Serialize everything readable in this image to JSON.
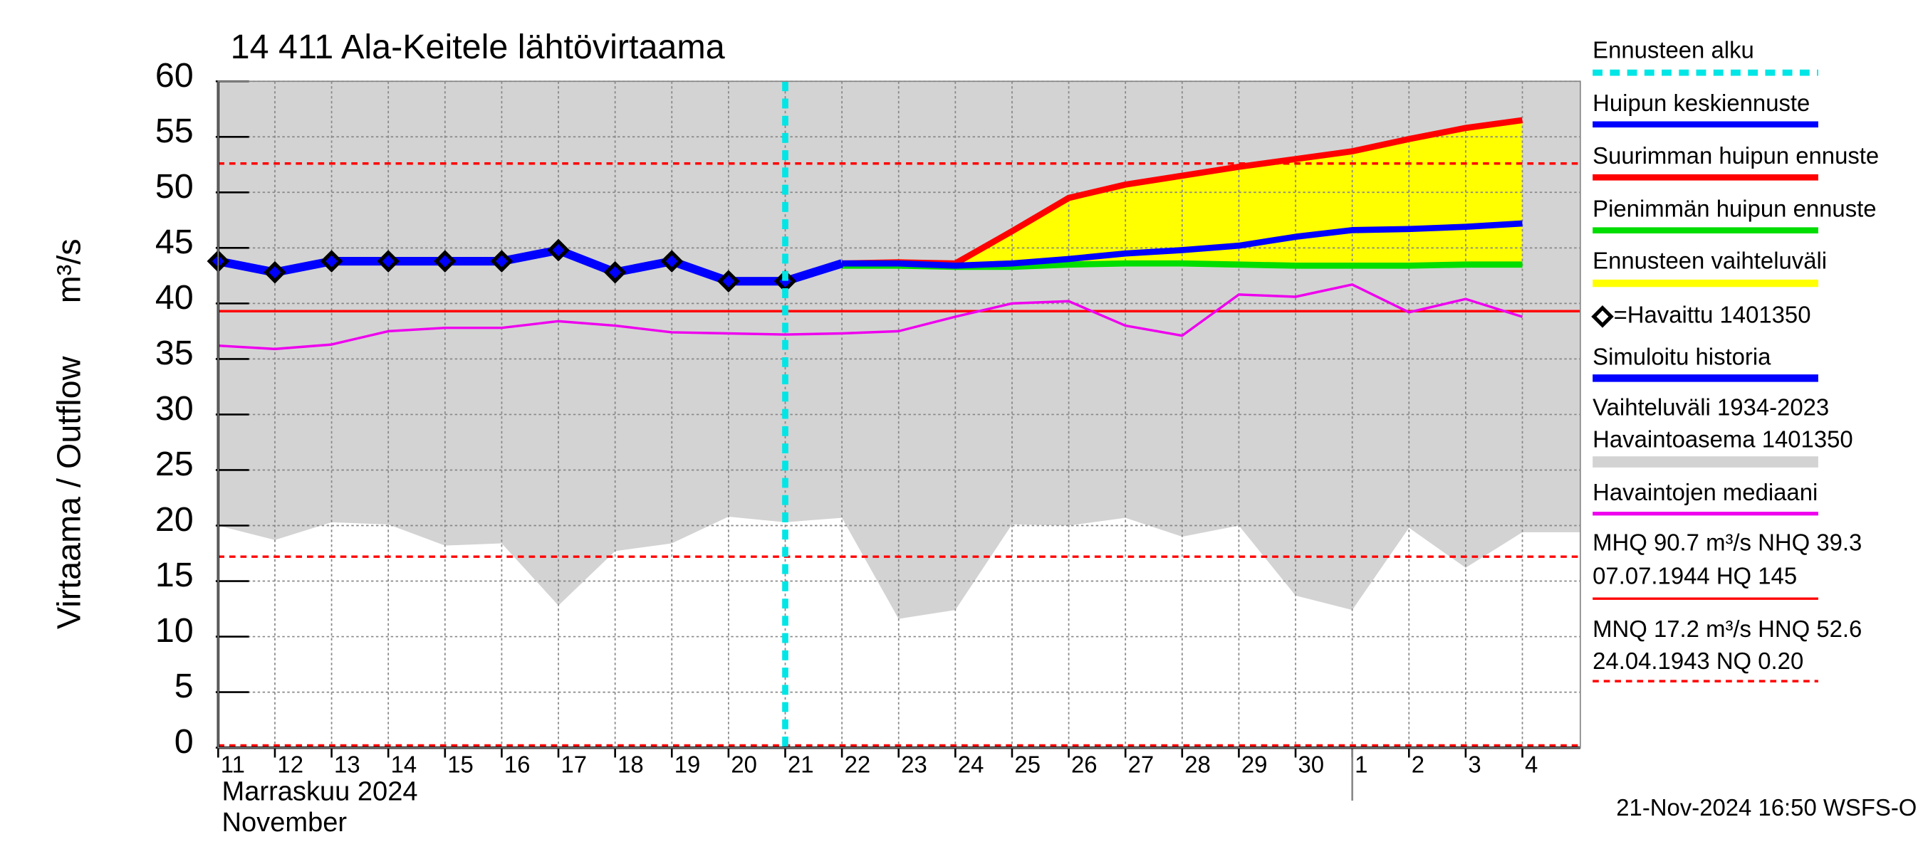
{
  "chart_data": {
    "type": "line",
    "title": "14 411 Ala-Keitele lähtövirtaama",
    "y_label": "Virtaama / Outflow",
    "y_unit": "m³/s",
    "x_label": [
      "Marraskuu 2024",
      "November"
    ],
    "timestamp": "21-Nov-2024 16:50 WSFS-O",
    "categories": [
      "11",
      "12",
      "13",
      "14",
      "15",
      "16",
      "17",
      "18",
      "19",
      "20",
      "21",
      "22",
      "23",
      "24",
      "25",
      "26",
      "27",
      "28",
      "29",
      "30",
      "1",
      "2",
      "3",
      "4"
    ],
    "ylim": [
      0,
      60
    ],
    "yticks": [
      0,
      5,
      10,
      15,
      20,
      25,
      30,
      35,
      40,
      45,
      50,
      55,
      60
    ],
    "grid": true,
    "forecast_start": {
      "name": "Ennusteen alku",
      "category": "21",
      "color": "#00e5e5"
    },
    "series": [
      {
        "name": "Huipun keskiennuste",
        "color": "#0000ff",
        "width": 5,
        "values": [
          null,
          null,
          null,
          null,
          null,
          null,
          null,
          null,
          null,
          null,
          null,
          43.6,
          43.6,
          43.4,
          43.6,
          44.0,
          44.5,
          44.8,
          45.2,
          46.0,
          46.6,
          46.7,
          46.9,
          47.2
        ]
      },
      {
        "name": "Suurimman huipun ennuste",
        "color": "#ff0000",
        "width": 5,
        "values": [
          null,
          null,
          null,
          null,
          null,
          null,
          null,
          null,
          null,
          null,
          null,
          43.6,
          43.7,
          43.6,
          46.5,
          49.5,
          50.7,
          51.5,
          52.3,
          53.0,
          53.7,
          54.8,
          55.8,
          56.5
        ]
      },
      {
        "name": "Pienimmän huipun ennuste",
        "color": "#00dd00",
        "width": 5,
        "values": [
          null,
          null,
          null,
          null,
          null,
          null,
          null,
          null,
          null,
          null,
          null,
          43.4,
          43.4,
          43.3,
          43.3,
          43.5,
          43.6,
          43.6,
          43.5,
          43.4,
          43.4,
          43.4,
          43.5,
          43.5
        ]
      },
      {
        "name": "=Havaittu 1401350",
        "color": "#000000",
        "markers": true,
        "values": [
          43.8,
          42.8,
          43.8,
          43.8,
          43.8,
          43.8,
          44.8,
          42.8,
          43.8,
          42.0,
          42.0,
          null,
          null,
          null,
          null,
          null,
          null,
          null,
          null,
          null,
          null,
          null,
          null,
          null
        ]
      },
      {
        "name": "Simuloitu historia",
        "color": "#0000ff",
        "width": 7,
        "values": [
          43.8,
          42.8,
          43.8,
          43.8,
          43.8,
          43.8,
          44.8,
          42.8,
          43.8,
          42.0,
          42.0,
          43.6,
          null,
          null,
          null,
          null,
          null,
          null,
          null,
          null,
          null,
          null,
          null,
          null
        ]
      },
      {
        "name": "Havaintojen mediaani",
        "color": "#ee00ee",
        "width": 2,
        "values": [
          36.2,
          35.9,
          36.3,
          37.5,
          37.8,
          37.8,
          38.4,
          38.0,
          37.4,
          37.3,
          37.2,
          37.3,
          37.5,
          38.8,
          40.0,
          40.2,
          38.0,
          37.1,
          40.8,
          40.6,
          41.7,
          39.2,
          40.4,
          38.8
        ]
      }
    ],
    "forecast_band": {
      "name": "Ennusteen vaihteluväli",
      "color": "#ffff00"
    },
    "history_band": {
      "name": [
        "Vaihteluväli 1934-2023",
        " Havaintoasema 1401350"
      ],
      "color": "#d3d3d3",
      "lower": [
        20.0,
        18.7,
        20.3,
        20.1,
        18.2,
        18.4,
        12.8,
        17.7,
        18.4,
        20.8,
        20.3,
        20.7,
        11.6,
        12.4,
        20.1,
        20.0,
        20.7,
        19.0,
        20.0,
        13.7,
        12.4,
        19.8,
        16.2,
        19.4
      ]
    },
    "reference_lines": [
      {
        "value": 39.3,
        "style": "solid",
        "color": "#ff0000",
        "label": [
          "MHQ 90.7 m³/s NHQ 39.3",
          "07.07.1944 HQ  145"
        ]
      },
      {
        "value": 52.6,
        "style": "dashed",
        "color": "#ff0000"
      },
      {
        "value": 17.2,
        "style": "dashed",
        "color": "#ff0000",
        "label": [
          "MNQ 17.2 m³/s HNQ 52.6",
          "24.04.1943 NQ 0.20"
        ]
      },
      {
        "value": 0.2,
        "style": "dashed",
        "color": "#ff0000"
      }
    ]
  }
}
